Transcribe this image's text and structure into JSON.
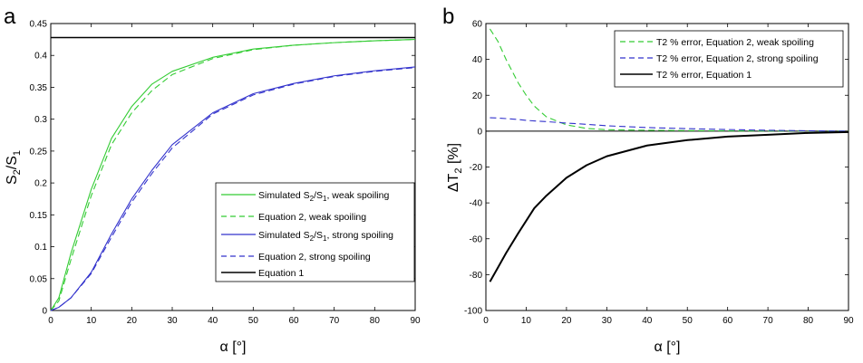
{
  "colors": {
    "green": "#33cc33",
    "blue": "#3333cc",
    "black": "#000000"
  },
  "chart_data": [
    {
      "panel": "a",
      "type": "line",
      "xlabel": "α [°]",
      "ylabel": "S2/S1",
      "ylabel_parts": {
        "main": "S",
        "sub1": "2",
        "slash": "/S",
        "sub2": "1"
      },
      "xlim": [
        0,
        90
      ],
      "ylim": [
        0,
        0.45
      ],
      "xticks": [
        "0",
        "10",
        "20",
        "30",
        "40",
        "50",
        "60",
        "70",
        "80",
        "90"
      ],
      "yticks": [
        "0",
        "0.05",
        "0.1",
        "0.15",
        "0.2",
        "0.25",
        "0.3",
        "0.35",
        "0.4",
        "0.45"
      ],
      "legend_position": "bottom-right",
      "x": [
        0,
        2,
        5,
        10,
        15,
        20,
        25,
        30,
        40,
        50,
        60,
        70,
        80,
        90
      ],
      "series": [
        {
          "name": "Simulated S2/S1, weak spoiling",
          "parts": [
            "Simulated S",
            "2",
            "/S",
            "1",
            ", weak spoiling"
          ],
          "color": "green",
          "dash": "solid",
          "values": [
            0,
            0.02,
            0.09,
            0.19,
            0.27,
            0.32,
            0.355,
            0.375,
            0.397,
            0.41,
            0.416,
            0.42,
            0.423,
            0.425
          ]
        },
        {
          "name": "Equation 2, weak spoiling",
          "color": "green",
          "dash": "dashed",
          "values": [
            0,
            0.015,
            0.08,
            0.18,
            0.26,
            0.31,
            0.345,
            0.37,
            0.395,
            0.409,
            0.416,
            0.42,
            0.423,
            0.425
          ]
        },
        {
          "name": "Simulated S2/S1, strong spoiling",
          "parts": [
            "Simulated S",
            "2",
            "/S",
            "1",
            ", strong spoiling"
          ],
          "color": "blue",
          "dash": "solid",
          "values": [
            0,
            0.005,
            0.02,
            0.06,
            0.12,
            0.175,
            0.22,
            0.26,
            0.31,
            0.34,
            0.356,
            0.368,
            0.376,
            0.382
          ]
        },
        {
          "name": "Equation 2, strong spoiling",
          "color": "blue",
          "dash": "dashed",
          "values": [
            0,
            0.005,
            0.02,
            0.058,
            0.115,
            0.17,
            0.215,
            0.255,
            0.308,
            0.338,
            0.355,
            0.367,
            0.375,
            0.381
          ]
        },
        {
          "name": "Equation 1",
          "color": "black",
          "dash": "solid",
          "values": [
            0.428,
            0.428,
            0.428,
            0.428,
            0.428,
            0.428,
            0.428,
            0.428,
            0.428,
            0.428,
            0.428,
            0.428,
            0.428,
            0.428
          ]
        }
      ]
    },
    {
      "panel": "b",
      "type": "line",
      "xlabel": "α [°]",
      "ylabel": "ΔT2 [%]",
      "ylabel_parts": {
        "main": "ΔT",
        "sub": "2",
        "rest": " [%]"
      },
      "xlim": [
        0,
        90
      ],
      "ylim": [
        -100,
        60
      ],
      "xticks": [
        "0",
        "10",
        "20",
        "30",
        "40",
        "50",
        "60",
        "70",
        "80",
        "90"
      ],
      "yticks": [
        "-100",
        "-80",
        "-60",
        "-40",
        "-20",
        "0",
        "20",
        "40",
        "60"
      ],
      "legend_position": "top-right",
      "x": [
        1,
        3,
        5,
        8,
        10,
        12,
        15,
        20,
        25,
        30,
        40,
        50,
        60,
        70,
        80,
        90
      ],
      "series": [
        {
          "name": "T2 % error, Equation 2, weak spoiling",
          "color": "green",
          "dash": "dashed",
          "values": [
            57,
            50,
            40,
            27,
            20,
            14,
            8,
            3.5,
            1.5,
            0.8,
            0.5,
            0.3,
            0.2,
            0.1,
            0.1,
            0
          ]
        },
        {
          "name": "T2 % error, Equation 2, strong spoiling",
          "color": "blue",
          "dash": "dashed",
          "values": [
            7.5,
            7.3,
            7,
            6.5,
            6,
            5.7,
            5.3,
            4.5,
            3.8,
            3,
            2,
            1.4,
            0.9,
            0.5,
            0.2,
            0
          ]
        },
        {
          "name": "T2 % error, Equation 1",
          "color": "black",
          "dash": "solid",
          "values": [
            -84,
            -76,
            -68,
            -57,
            -50,
            -43,
            -36,
            -26,
            -19,
            -14,
            -8,
            -5,
            -3,
            -2,
            -1,
            -0.5
          ]
        }
      ]
    }
  ]
}
